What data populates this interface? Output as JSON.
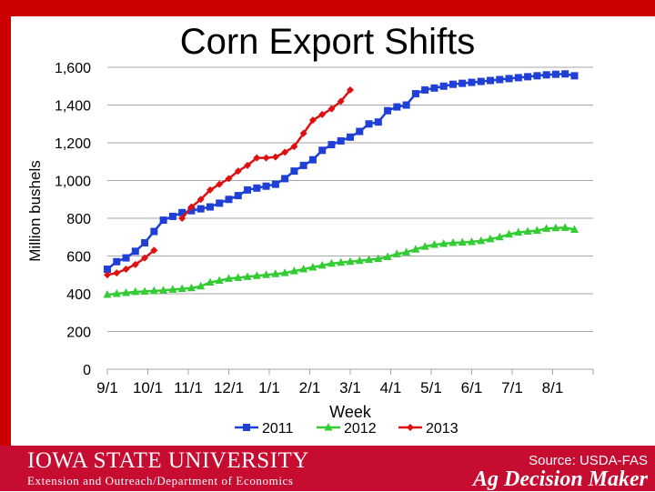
{
  "slide": {
    "title": "Corn Export Shifts",
    "footer_university": "IOWA STATE UNIVERSITY",
    "footer_department": "Extension and Outreach/Department of Economics",
    "source": "Source: USDA-FAS",
    "brand": "Ag Decision Maker"
  },
  "colors": {
    "header_red": "#cc0000",
    "footer_red": "#c60c30",
    "gridline": "#a6a6a6",
    "series_2011": "#1f3fd6",
    "series_2012": "#33cc33",
    "series_2013": "#dd1111"
  },
  "chart_data": {
    "type": "line",
    "title": "Corn Export Shifts",
    "xlabel": "Week",
    "ylabel": "Million bushels",
    "ylim": [
      0,
      1600
    ],
    "yticks": [
      0,
      200,
      400,
      600,
      800,
      1000,
      1200,
      1400,
      1600
    ],
    "ytick_labels": [
      "0",
      "200",
      "400",
      "600",
      "800",
      "1,000",
      "1,200",
      "1,400",
      "1,600"
    ],
    "xtick_labels": [
      "9/1",
      "10/1",
      "11/1",
      "12/1",
      "1/1",
      "2/1",
      "3/1",
      "4/1",
      "5/1",
      "6/1",
      "7/1",
      "8/1"
    ],
    "grid": true,
    "legend": "bottom",
    "series": [
      {
        "name": "2011",
        "marker": "square",
        "values": [
          530,
          570,
          590,
          625,
          670,
          730,
          790,
          810,
          830,
          840,
          850,
          860,
          880,
          900,
          920,
          950,
          960,
          970,
          980,
          1010,
          1050,
          1080,
          1110,
          1160,
          1190,
          1210,
          1230,
          1260,
          1300,
          1310,
          1370,
          1390,
          1400,
          1460,
          1480,
          1490,
          1500,
          1510,
          1515,
          1520,
          1525,
          1530,
          1535,
          1540,
          1545,
          1550,
          1555,
          1560,
          1563,
          1565,
          1555
        ]
      },
      {
        "name": "2012",
        "marker": "triangle",
        "values": [
          395,
          400,
          405,
          410,
          412,
          415,
          418,
          422,
          426,
          430,
          440,
          460,
          470,
          480,
          485,
          490,
          495,
          500,
          505,
          510,
          520,
          530,
          540,
          550,
          560,
          565,
          570,
          575,
          580,
          585,
          595,
          610,
          620,
          635,
          650,
          660,
          665,
          670,
          672,
          675,
          680,
          690,
          700,
          715,
          725,
          730,
          735,
          745,
          748,
          750,
          740
        ]
      },
      {
        "name": "2013",
        "marker": "diamond",
        "values": [
          500,
          510,
          530,
          555,
          590,
          630,
          null,
          null,
          800,
          860,
          900,
          950,
          980,
          1010,
          1050,
          1080,
          1120,
          1120,
          1125,
          1150,
          1180,
          1250,
          1320,
          1350,
          1380,
          1420,
          1480
        ]
      }
    ]
  }
}
